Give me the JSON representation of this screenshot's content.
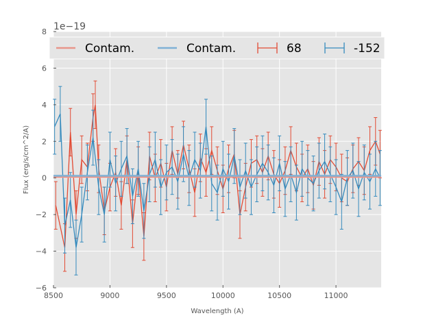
{
  "chart_data": {
    "type": "line",
    "title": "",
    "xlabel": "Wavelength (A)",
    "ylabel": "Flux (erg/s/cm^2/A)",
    "xlim": [
      8500,
      11400
    ],
    "ylim": [
      -6,
      8
    ],
    "y_scale_label": "1e−19",
    "x_ticks": [
      8500,
      9000,
      9500,
      10000,
      10500,
      11000
    ],
    "y_ticks": [
      -6,
      -4,
      -2,
      0,
      2,
      4,
      6,
      8
    ],
    "grid": true,
    "legend": {
      "position": "top",
      "entries": [
        {
          "label": "Contam.",
          "kind": "line",
          "color": "#E8958A"
        },
        {
          "label": "Contam.",
          "kind": "line",
          "color": "#7FB1D5"
        },
        {
          "label": "68",
          "kind": "errorbar",
          "color": "#E24A33"
        },
        {
          "label": "-152",
          "kind": "errorbar",
          "color": "#348ABD"
        }
      ]
    },
    "series": [
      {
        "name": "68",
        "color": "#E24A33",
        "error_bar": 1.3,
        "x": [
          8520,
          8600,
          8650,
          8700,
          8750,
          8800,
          8850,
          8870,
          8900,
          8950,
          9000,
          9050,
          9100,
          9150,
          9200,
          9250,
          9300,
          9350,
          9400,
          9450,
          9500,
          9550,
          9600,
          9650,
          9700,
          9750,
          9800,
          9850,
          9900,
          9950,
          10000,
          10050,
          10100,
          10150,
          10200,
          10250,
          10300,
          10350,
          10400,
          10450,
          10500,
          10550,
          10600,
          10650,
          10700,
          10750,
          10800,
          10850,
          10900,
          10950,
          11000,
          11050,
          11100,
          11150,
          11200,
          11250,
          11300,
          11350,
          11390
        ],
        "y": [
          -1.5,
          -3.8,
          2.5,
          -2.0,
          1.0,
          0.6,
          3.3,
          4.0,
          0.5,
          -1.8,
          -0.5,
          0.3,
          -1.5,
          1.0,
          -2.5,
          0.4,
          -3.2,
          1.2,
          0.0,
          0.8,
          -0.5,
          1.5,
          0.2,
          1.8,
          0.5,
          -0.8,
          1.1,
          0.3,
          1.5,
          0.4,
          -0.6,
          0.5,
          1.3,
          -2.0,
          -0.5,
          0.8,
          1.0,
          0.3,
          1.2,
          0.2,
          -0.3,
          0.4,
          1.5,
          0.6,
          0.0,
          0.5,
          -0.4,
          0.9,
          0.2,
          1.0,
          0.6,
          0.0,
          -0.2,
          0.5,
          0.9,
          0.4,
          1.5,
          2.0,
          1.3
        ]
      },
      {
        "name": "-152",
        "color": "#348ABD",
        "error_bar": 1.5,
        "x": [
          8510,
          8560,
          8600,
          8650,
          8700,
          8750,
          8800,
          8850,
          8900,
          8950,
          9000,
          9050,
          9100,
          9150,
          9200,
          9250,
          9300,
          9350,
          9400,
          9450,
          9500,
          9550,
          9600,
          9650,
          9700,
          9750,
          9800,
          9850,
          9900,
          9950,
          10000,
          10050,
          10100,
          10150,
          10200,
          10250,
          10300,
          10350,
          10400,
          10450,
          10500,
          10550,
          10600,
          10650,
          10700,
          10750,
          10800,
          10850,
          10900,
          10950,
          11000,
          11050,
          11100,
          11150,
          11200,
          11250,
          11300,
          11350,
          11390
        ],
        "y": [
          2.8,
          3.5,
          -2.6,
          -1.2,
          -3.8,
          -2.0,
          0.3,
          2.2,
          -0.5,
          -2.0,
          1.0,
          -0.3,
          0.5,
          1.2,
          -1.0,
          0.5,
          -1.8,
          0.2,
          1.0,
          -0.5,
          0.3,
          0.6,
          -0.2,
          1.3,
          0.0,
          1.0,
          0.4,
          2.8,
          -0.3,
          -0.8,
          0.5,
          -0.2,
          1.2,
          -0.5,
          0.4,
          -0.5,
          0.2,
          0.8,
          0.3,
          -0.4,
          0.8,
          -0.6,
          0.2,
          -0.8,
          0.5,
          0.0,
          -0.3,
          0.4,
          0.9,
          0.2,
          -0.5,
          -1.3,
          0.0,
          0.4,
          -0.6,
          0.3,
          -0.2,
          0.5,
          0.0
        ]
      },
      {
        "name": "Contam.",
        "color": "#E8958A",
        "x": [
          8500,
          11400
        ],
        "y": [
          0.05,
          0.05
        ]
      },
      {
        "name": "Contam.",
        "color": "#7FB1D5",
        "x": [
          8500,
          11400
        ],
        "y": [
          0.12,
          0.12
        ]
      }
    ]
  }
}
